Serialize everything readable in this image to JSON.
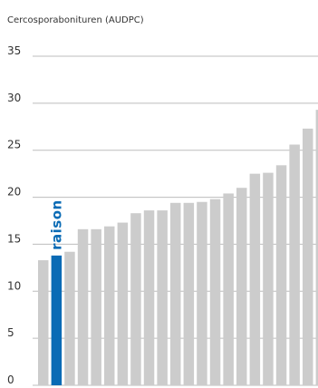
{
  "chart_data": {
    "type": "bar",
    "title": "",
    "ylabel": "Cercosporabonituren (AUDPC)",
    "xlabel": "",
    "ylim": [
      0,
      35
    ],
    "yticks": [
      0,
      5,
      10,
      15,
      20,
      25,
      30,
      35
    ],
    "grid": true,
    "values": [
      13.3,
      13.8,
      14.2,
      16.6,
      16.6,
      16.9,
      17.3,
      18.3,
      18.6,
      18.6,
      19.4,
      19.4,
      19.5,
      19.8,
      20.4,
      21.0,
      22.5,
      22.6,
      23.4,
      25.6,
      27.3,
      29.3
    ],
    "highlight": {
      "index": 1,
      "label": "raison",
      "color": "#0a6bb5"
    },
    "bar_color": "#cccccc",
    "grid_color": "#bdbdbd"
  }
}
